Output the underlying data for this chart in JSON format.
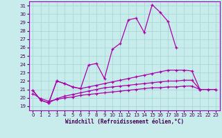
{
  "xlabel": "Windchill (Refroidissement éolien,°C)",
  "bg_color": "#c8ecec",
  "grid_color": "#a8d8d8",
  "line_color": "#aa00aa",
  "xlim": [
    -0.5,
    23.5
  ],
  "ylim": [
    18.5,
    31.5
  ],
  "yticks": [
    19,
    20,
    21,
    22,
    23,
    24,
    25,
    26,
    27,
    28,
    29,
    30,
    31
  ],
  "xticks": [
    0,
    1,
    2,
    3,
    4,
    5,
    6,
    7,
    8,
    9,
    10,
    11,
    12,
    13,
    14,
    15,
    16,
    17,
    18,
    19,
    20,
    21,
    22,
    23
  ],
  "lines": [
    {
      "x": [
        0,
        1,
        2,
        3,
        4,
        5,
        6,
        7,
        8,
        9,
        10,
        11,
        12,
        13,
        14,
        15,
        16,
        17,
        18
      ],
      "y": [
        20.9,
        19.7,
        19.4,
        22.0,
        21.7,
        21.3,
        21.1,
        23.9,
        24.1,
        22.3,
        25.8,
        26.5,
        29.3,
        29.5,
        27.8,
        31.1,
        30.2,
        29.1,
        26.0
      ]
    },
    {
      "x": [
        2,
        3,
        4,
        5,
        6,
        7,
        8,
        9,
        10,
        11,
        12,
        13,
        14,
        15,
        16,
        17,
        18,
        19,
        20,
        21
      ],
      "y": [
        19.4,
        22.0,
        21.7,
        21.3,
        21.1,
        21.3,
        21.5,
        21.7,
        21.9,
        22.1,
        22.3,
        22.5,
        22.7,
        22.9,
        23.1,
        23.3,
        23.3,
        23.3,
        23.2,
        21.0
      ]
    },
    {
      "x": [
        0,
        1,
        2,
        3,
        4,
        5,
        6,
        7,
        8,
        9,
        10,
        11,
        12,
        13,
        14,
        15,
        16,
        17,
        18,
        19,
        20,
        21,
        22,
        23
      ],
      "y": [
        20.9,
        19.7,
        19.4,
        19.9,
        20.2,
        20.4,
        20.6,
        20.8,
        21.0,
        21.2,
        21.3,
        21.4,
        21.5,
        21.6,
        21.7,
        21.8,
        21.9,
        22.0,
        22.0,
        22.1,
        22.1,
        21.0,
        21.0,
        21.0
      ]
    },
    {
      "x": [
        0,
        1,
        2,
        3,
        4,
        5,
        6,
        7,
        8,
        9,
        10,
        11,
        12,
        13,
        14,
        15,
        16,
        17,
        18,
        19,
        20,
        21,
        22,
        23
      ],
      "y": [
        20.5,
        19.9,
        19.6,
        19.8,
        20.0,
        20.1,
        20.3,
        20.4,
        20.5,
        20.6,
        20.7,
        20.8,
        20.9,
        21.0,
        21.1,
        21.2,
        21.2,
        21.3,
        21.3,
        21.4,
        21.4,
        21.0,
        21.0,
        21.0
      ]
    }
  ]
}
